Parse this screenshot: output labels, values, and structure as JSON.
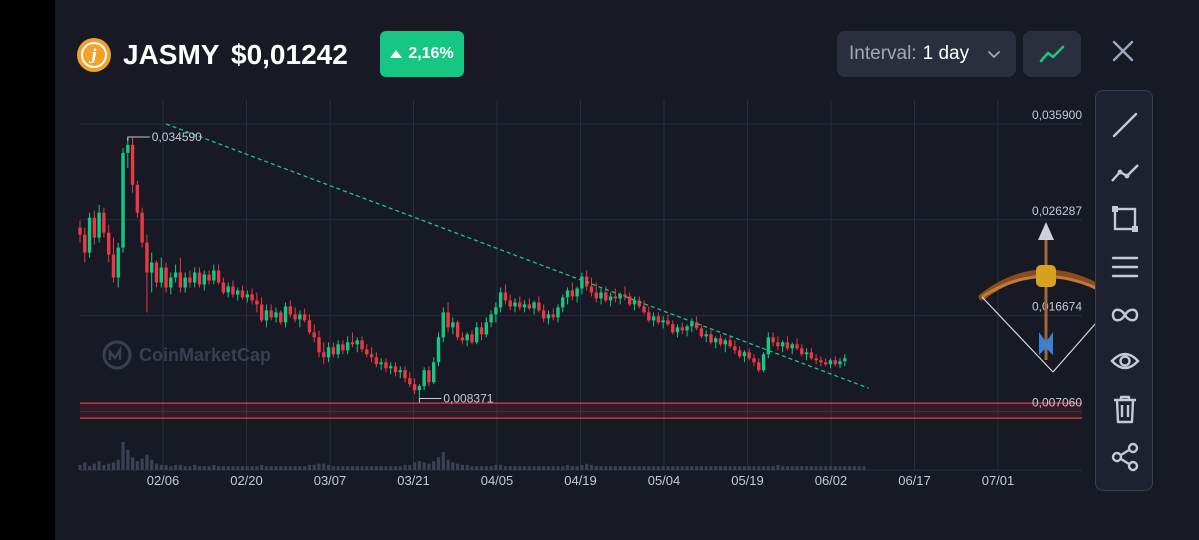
{
  "header": {
    "coin_symbol": "JASMY",
    "price": "$0,01242",
    "change": "2,16%",
    "interval_label": "Interval:",
    "interval_value": "1 day",
    "logo_letter": "j"
  },
  "watermark": "CoinMarketCap",
  "colors": {
    "up": "#16c784",
    "down": "#ea3943",
    "trendline": "#16c784",
    "support": "#ea3943",
    "background": "#171924"
  },
  "icons": {
    "close": "close-icon",
    "line_chart": "line-chart-icon",
    "toolbar": [
      "line-tool-icon",
      "polyline-tool-icon",
      "rectangle-tool-icon",
      "horizontal-lines-icon",
      "infinity-icon",
      "eye-icon",
      "trash-icon",
      "share-icon"
    ],
    "emoji": "bow-and-arrow-emoji"
  },
  "chart_data": {
    "type": "candlestick",
    "price_levels": [
      "0,035900",
      "0,026287",
      "0,016674",
      "0,007060"
    ],
    "y_ticks": [
      0.0359,
      0.026287,
      0.016674,
      0.00706
    ],
    "ylim": [
      0.003,
      0.0376
    ],
    "x_ticks": [
      "02/06",
      "02/20",
      "03/07",
      "03/21",
      "04/05",
      "04/19",
      "05/04",
      "05/19",
      "06/02",
      "06/17",
      "07/01"
    ],
    "annotations": [
      {
        "label": "0,034590",
        "value": 0.03459,
        "day": 10,
        "type": "high"
      },
      {
        "label": "0,008371",
        "value": 0.008371,
        "day": 71,
        "type": "low"
      }
    ],
    "support_zone": {
      "low": 0.0064,
      "high": 0.0079
    },
    "trendline": {
      "start": {
        "day": 18,
        "value": 0.0359
      },
      "end": {
        "day": 165,
        "value": 0.0094
      }
    },
    "days": 165,
    "ohlc": [
      [
        0.0255,
        0.0262,
        0.024,
        0.0248
      ],
      [
        0.0248,
        0.0255,
        0.022,
        0.023
      ],
      [
        0.023,
        0.027,
        0.0225,
        0.0265
      ],
      [
        0.0265,
        0.0272,
        0.0238,
        0.0245
      ],
      [
        0.0245,
        0.0278,
        0.024,
        0.027
      ],
      [
        0.027,
        0.0275,
        0.0245,
        0.025
      ],
      [
        0.025,
        0.0258,
        0.022,
        0.0228
      ],
      [
        0.0228,
        0.0245,
        0.02,
        0.0205
      ],
      [
        0.0205,
        0.024,
        0.0195,
        0.0235
      ],
      [
        0.0235,
        0.0335,
        0.023,
        0.033
      ],
      [
        0.033,
        0.0345,
        0.0315,
        0.0338
      ],
      [
        0.0338,
        0.0346,
        0.029,
        0.0298
      ],
      [
        0.0298,
        0.0302,
        0.0265,
        0.027
      ],
      [
        0.027,
        0.0275,
        0.0235,
        0.024
      ],
      [
        0.024,
        0.0248,
        0.017,
        0.021
      ],
      [
        0.021,
        0.023,
        0.019,
        0.022
      ],
      [
        0.022,
        0.0222,
        0.0195,
        0.02
      ],
      [
        0.02,
        0.0225,
        0.0195,
        0.0215
      ],
      [
        0.0215,
        0.022,
        0.019,
        0.0195
      ],
      [
        0.0195,
        0.021,
        0.0188,
        0.0205
      ],
      [
        0.0205,
        0.0218,
        0.02,
        0.021
      ],
      [
        0.021,
        0.0225,
        0.019,
        0.0195
      ],
      [
        0.0195,
        0.021,
        0.019,
        0.0205
      ],
      [
        0.0205,
        0.0212,
        0.0195,
        0.02
      ],
      [
        0.02,
        0.0215,
        0.0195,
        0.021
      ],
      [
        0.021,
        0.0215,
        0.0195,
        0.0198
      ],
      [
        0.0198,
        0.0212,
        0.0192,
        0.0208
      ],
      [
        0.0208,
        0.0212,
        0.0198,
        0.0202
      ],
      [
        0.0202,
        0.0218,
        0.0198,
        0.0212
      ],
      [
        0.0212,
        0.0218,
        0.0198,
        0.02
      ],
      [
        0.02,
        0.0205,
        0.0188,
        0.019
      ],
      [
        0.019,
        0.02,
        0.0185,
        0.0196
      ],
      [
        0.0196,
        0.0202,
        0.0185,
        0.0188
      ],
      [
        0.0188,
        0.0195,
        0.0182,
        0.0192
      ],
      [
        0.0192,
        0.0197,
        0.0183,
        0.0185
      ],
      [
        0.0185,
        0.0192,
        0.018,
        0.0188
      ],
      [
        0.0188,
        0.0194,
        0.0178,
        0.0182
      ],
      [
        0.0182,
        0.019,
        0.017,
        0.0178
      ],
      [
        0.0178,
        0.0185,
        0.016,
        0.0162
      ],
      [
        0.0162,
        0.0178,
        0.0155,
        0.0172
      ],
      [
        0.0172,
        0.0178,
        0.0162,
        0.0165
      ],
      [
        0.0165,
        0.0175,
        0.016,
        0.017
      ],
      [
        0.017,
        0.0172,
        0.0158,
        0.016
      ],
      [
        0.016,
        0.018,
        0.0155,
        0.0176
      ],
      [
        0.0176,
        0.0182,
        0.0165,
        0.0168
      ],
      [
        0.0168,
        0.0175,
        0.016,
        0.0163
      ],
      [
        0.0163,
        0.0172,
        0.0155,
        0.0168
      ],
      [
        0.0168,
        0.0174,
        0.016,
        0.0162
      ],
      [
        0.0162,
        0.0168,
        0.0148,
        0.015
      ],
      [
        0.015,
        0.0158,
        0.014,
        0.0145
      ],
      [
        0.0145,
        0.0152,
        0.0125,
        0.013
      ],
      [
        0.013,
        0.014,
        0.0118,
        0.0125
      ],
      [
        0.0125,
        0.014,
        0.012,
        0.0135
      ],
      [
        0.0135,
        0.014,
        0.0125,
        0.0128
      ],
      [
        0.0128,
        0.0142,
        0.0124,
        0.0138
      ],
      [
        0.0138,
        0.0142,
        0.0128,
        0.0132
      ],
      [
        0.0132,
        0.0146,
        0.0128,
        0.014
      ],
      [
        0.014,
        0.015,
        0.0135,
        0.0138
      ],
      [
        0.0138,
        0.0145,
        0.013,
        0.0142
      ],
      [
        0.0142,
        0.0146,
        0.013,
        0.0133
      ],
      [
        0.0133,
        0.0138,
        0.0125,
        0.0128
      ],
      [
        0.0128,
        0.0135,
        0.012,
        0.0125
      ],
      [
        0.0125,
        0.013,
        0.0115,
        0.0118
      ],
      [
        0.0118,
        0.0124,
        0.0112,
        0.012
      ],
      [
        0.012,
        0.0124,
        0.011,
        0.0114
      ],
      [
        0.0114,
        0.012,
        0.0108,
        0.0116
      ],
      [
        0.0116,
        0.012,
        0.0106,
        0.011
      ],
      [
        0.011,
        0.0116,
        0.0104,
        0.0112
      ],
      [
        0.0112,
        0.0116,
        0.01,
        0.0104
      ],
      [
        0.0104,
        0.011,
        0.0095,
        0.0098
      ],
      [
        0.0098,
        0.0104,
        0.0088,
        0.0092
      ],
      [
        0.0092,
        0.0098,
        0.0084,
        0.0096
      ],
      [
        0.0096,
        0.0115,
        0.0092,
        0.0112
      ],
      [
        0.0112,
        0.0116,
        0.0096,
        0.01
      ],
      [
        0.01,
        0.0125,
        0.0098,
        0.012
      ],
      [
        0.012,
        0.015,
        0.0116,
        0.0145
      ],
      [
        0.0145,
        0.0175,
        0.014,
        0.017
      ],
      [
        0.017,
        0.018,
        0.015,
        0.0155
      ],
      [
        0.0155,
        0.0165,
        0.0148,
        0.016
      ],
      [
        0.016,
        0.0162,
        0.0142,
        0.0145
      ],
      [
        0.0145,
        0.015,
        0.0138,
        0.0142
      ],
      [
        0.0142,
        0.015,
        0.0136,
        0.0148
      ],
      [
        0.0148,
        0.0152,
        0.0138,
        0.014
      ],
      [
        0.014,
        0.016,
        0.0138,
        0.0155
      ],
      [
        0.0155,
        0.016,
        0.0142,
        0.0148
      ],
      [
        0.0148,
        0.0165,
        0.0145,
        0.016
      ],
      [
        0.016,
        0.0172,
        0.0155,
        0.0168
      ],
      [
        0.0168,
        0.018,
        0.016,
        0.0175
      ],
      [
        0.0175,
        0.0195,
        0.017,
        0.019
      ],
      [
        0.019,
        0.0198,
        0.0178,
        0.0182
      ],
      [
        0.0182,
        0.0188,
        0.0172,
        0.0176
      ],
      [
        0.0176,
        0.0184,
        0.017,
        0.018
      ],
      [
        0.018,
        0.0186,
        0.0172,
        0.0175
      ],
      [
        0.0175,
        0.0182,
        0.017,
        0.0178
      ],
      [
        0.0178,
        0.0184,
        0.0172,
        0.0174
      ],
      [
        0.0174,
        0.0182,
        0.0168,
        0.018
      ],
      [
        0.018,
        0.0186,
        0.017,
        0.0172
      ],
      [
        0.0172,
        0.0178,
        0.016,
        0.0164
      ],
      [
        0.0164,
        0.0172,
        0.0158,
        0.0168
      ],
      [
        0.0168,
        0.0174,
        0.0162,
        0.0165
      ],
      [
        0.0165,
        0.0178,
        0.016,
        0.0175
      ],
      [
        0.0175,
        0.0188,
        0.017,
        0.0185
      ],
      [
        0.0185,
        0.0195,
        0.0178,
        0.0192
      ],
      [
        0.0192,
        0.02,
        0.0182,
        0.0186
      ],
      [
        0.0186,
        0.0196,
        0.018,
        0.0194
      ],
      [
        0.0194,
        0.021,
        0.0188,
        0.0206
      ],
      [
        0.0206,
        0.0212,
        0.0192,
        0.0196
      ],
      [
        0.0196,
        0.0205,
        0.0186,
        0.019
      ],
      [
        0.019,
        0.02,
        0.018,
        0.0184
      ],
      [
        0.0184,
        0.0194,
        0.0178,
        0.019
      ],
      [
        0.019,
        0.0196,
        0.018,
        0.0182
      ],
      [
        0.0182,
        0.019,
        0.0176,
        0.0186
      ],
      [
        0.0186,
        0.0194,
        0.018,
        0.0184
      ],
      [
        0.0184,
        0.019,
        0.0178,
        0.0188
      ],
      [
        0.0188,
        0.0196,
        0.0182,
        0.0186
      ],
      [
        0.0186,
        0.019,
        0.0176,
        0.0178
      ],
      [
        0.0178,
        0.0186,
        0.0172,
        0.0182
      ],
      [
        0.0182,
        0.0186,
        0.0174,
        0.0176
      ],
      [
        0.0176,
        0.0182,
        0.0168,
        0.017
      ],
      [
        0.017,
        0.0176,
        0.016,
        0.0162
      ],
      [
        0.0162,
        0.017,
        0.0156,
        0.0166
      ],
      [
        0.0166,
        0.017,
        0.0158,
        0.016
      ],
      [
        0.016,
        0.0166,
        0.0154,
        0.0162
      ],
      [
        0.0162,
        0.0168,
        0.0156,
        0.0158
      ],
      [
        0.0158,
        0.0162,
        0.0148,
        0.015
      ],
      [
        0.015,
        0.0158,
        0.0145,
        0.0155
      ],
      [
        0.0155,
        0.016,
        0.0148,
        0.0152
      ],
      [
        0.0152,
        0.0158,
        0.0146,
        0.0156
      ],
      [
        0.0156,
        0.0164,
        0.015,
        0.016
      ],
      [
        0.016,
        0.0166,
        0.0152,
        0.0154
      ],
      [
        0.0154,
        0.0158,
        0.0144,
        0.0146
      ],
      [
        0.0146,
        0.0152,
        0.014,
        0.0148
      ],
      [
        0.0148,
        0.0152,
        0.0138,
        0.014
      ],
      [
        0.014,
        0.0146,
        0.0134,
        0.0144
      ],
      [
        0.0144,
        0.0148,
        0.0136,
        0.0138
      ],
      [
        0.0138,
        0.0144,
        0.013,
        0.0142
      ],
      [
        0.0142,
        0.0146,
        0.0134,
        0.0136
      ],
      [
        0.0136,
        0.0142,
        0.0128,
        0.0132
      ],
      [
        0.0132,
        0.0136,
        0.0124,
        0.0126
      ],
      [
        0.0126,
        0.0132,
        0.012,
        0.013
      ],
      [
        0.013,
        0.0134,
        0.0122,
        0.0124
      ],
      [
        0.0124,
        0.0128,
        0.0116,
        0.012
      ],
      [
        0.012,
        0.0124,
        0.011,
        0.0112
      ],
      [
        0.0112,
        0.013,
        0.011,
        0.0128
      ],
      [
        0.0128,
        0.015,
        0.0124,
        0.0145
      ],
      [
        0.0145,
        0.015,
        0.0136,
        0.014
      ],
      [
        0.014,
        0.0146,
        0.0132,
        0.0136
      ],
      [
        0.0136,
        0.0142,
        0.013,
        0.014
      ],
      [
        0.014,
        0.0146,
        0.0132,
        0.0134
      ],
      [
        0.0134,
        0.014,
        0.0128,
        0.0138
      ],
      [
        0.0138,
        0.0144,
        0.0132,
        0.0134
      ],
      [
        0.0134,
        0.0138,
        0.0126,
        0.0128
      ],
      [
        0.0128,
        0.0134,
        0.0122,
        0.013
      ],
      [
        0.013,
        0.0134,
        0.0122,
        0.0124
      ],
      [
        0.0124,
        0.0128,
        0.0118,
        0.0122
      ],
      [
        0.0122,
        0.0126,
        0.0116,
        0.012
      ],
      [
        0.012,
        0.0124,
        0.0116,
        0.0118
      ],
      [
        0.0118,
        0.0124,
        0.0114,
        0.0122
      ],
      [
        0.0122,
        0.0126,
        0.0116,
        0.0118
      ],
      [
        0.0118,
        0.0124,
        0.0114,
        0.0121
      ],
      [
        0.0121,
        0.0128,
        0.0116,
        0.0124
      ]
    ],
    "volume": [
      4,
      6,
      3,
      5,
      7,
      4,
      5,
      6,
      8,
      22,
      16,
      10,
      7,
      9,
      12,
      8,
      5,
      4,
      4,
      3,
      4,
      4,
      3,
      3,
      4,
      3,
      3,
      3,
      4,
      3,
      3,
      3,
      3,
      3,
      3,
      3,
      3,
      3,
      4,
      3,
      3,
      3,
      3,
      3,
      3,
      3,
      3,
      3,
      4,
      4,
      5,
      5,
      4,
      3,
      3,
      3,
      3,
      3,
      3,
      3,
      3,
      3,
      3,
      3,
      3,
      3,
      3,
      3,
      4,
      4,
      6,
      7,
      6,
      5,
      7,
      10,
      14,
      8,
      6,
      5,
      4,
      4,
      3,
      3,
      3,
      3,
      3,
      4,
      4,
      3,
      3,
      3,
      3,
      3,
      3,
      3,
      3,
      3,
      3,
      3,
      3,
      3,
      4,
      3,
      3,
      4,
      5,
      4,
      3,
      3,
      3,
      3,
      3,
      3,
      3,
      3,
      3,
      3,
      3,
      3,
      3,
      3,
      3,
      3,
      3,
      3,
      3,
      3,
      3,
      3,
      3,
      3,
      3,
      3,
      3,
      3,
      3,
      3,
      3,
      3,
      3,
      3,
      3,
      3,
      3,
      3,
      4,
      3,
      3,
      3,
      3,
      3,
      3,
      3,
      3,
      3,
      3,
      3,
      3,
      3,
      3,
      3,
      3,
      3,
      3
    ]
  }
}
